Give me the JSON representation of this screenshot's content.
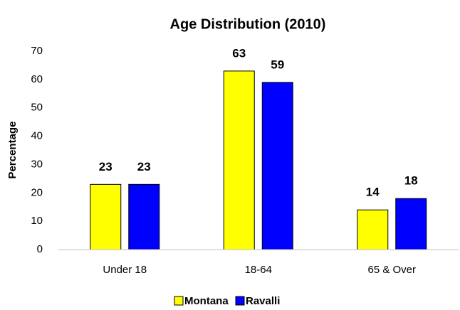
{
  "chart_data": {
    "type": "bar",
    "title": "Age Distribution (2010)",
    "y_label": "Percentage",
    "categories": [
      "Under 18",
      "18-64",
      "65 & Over"
    ],
    "series": [
      {
        "name": "Montana",
        "color": "#ffff00",
        "values": [
          23,
          63,
          14
        ]
      },
      {
        "name": "Ravalli",
        "color": "#0000ff",
        "values": [
          23,
          59,
          18
        ]
      }
    ],
    "ylim": [
      0,
      70
    ],
    "yticks": [
      0,
      10,
      20,
      30,
      40,
      50,
      60,
      70
    ],
    "grid": false,
    "legend": "bottom"
  }
}
